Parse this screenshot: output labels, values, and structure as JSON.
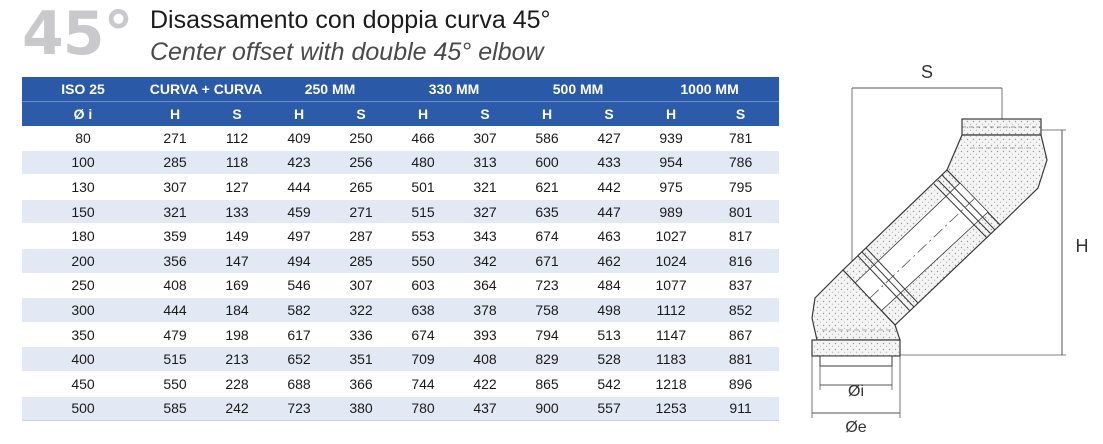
{
  "header": {
    "angle": "45°",
    "title_it": "Disassamento con doppia curva 45°",
    "title_en": "Center offset with double 45° elbow"
  },
  "table": {
    "groups": [
      "ISO 25",
      "CURVA + CURVA",
      "250 MM",
      "330 MM",
      "500 MM",
      "1000 MM"
    ],
    "subheaders": [
      "Ø i",
      "H",
      "S",
      "H",
      "S",
      "H",
      "S",
      "H",
      "S",
      "H",
      "S"
    ],
    "rows": [
      [
        "80",
        "271",
        "112",
        "409",
        "250",
        "466",
        "307",
        "586",
        "427",
        "939",
        "781"
      ],
      [
        "100",
        "285",
        "118",
        "423",
        "256",
        "480",
        "313",
        "600",
        "433",
        "954",
        "786"
      ],
      [
        "130",
        "307",
        "127",
        "444",
        "265",
        "501",
        "321",
        "621",
        "442",
        "975",
        "795"
      ],
      [
        "150",
        "321",
        "133",
        "459",
        "271",
        "515",
        "327",
        "635",
        "447",
        "989",
        "801"
      ],
      [
        "180",
        "359",
        "149",
        "497",
        "287",
        "553",
        "343",
        "674",
        "463",
        "1027",
        "817"
      ],
      [
        "200",
        "356",
        "147",
        "494",
        "285",
        "550",
        "342",
        "671",
        "462",
        "1024",
        "816"
      ],
      [
        "250",
        "408",
        "169",
        "546",
        "307",
        "603",
        "364",
        "723",
        "484",
        "1077",
        "837"
      ],
      [
        "300",
        "444",
        "184",
        "582",
        "322",
        "638",
        "378",
        "758",
        "498",
        "1112",
        "852"
      ],
      [
        "350",
        "479",
        "198",
        "617",
        "336",
        "674",
        "393",
        "794",
        "513",
        "1147",
        "867"
      ],
      [
        "400",
        "515",
        "213",
        "652",
        "351",
        "709",
        "408",
        "829",
        "528",
        "1183",
        "881"
      ],
      [
        "450",
        "550",
        "228",
        "688",
        "366",
        "744",
        "422",
        "865",
        "542",
        "1218",
        "896"
      ],
      [
        "500",
        "585",
        "242",
        "723",
        "380",
        "780",
        "437",
        "900",
        "557",
        "1253",
        "911"
      ]
    ]
  },
  "diagram": {
    "label_s": "S",
    "label_h": "H",
    "label_di": "Øi",
    "label_de": "Øe",
    "line_color": "#3a3a3a",
    "fill_color": "#f2f2f2"
  }
}
